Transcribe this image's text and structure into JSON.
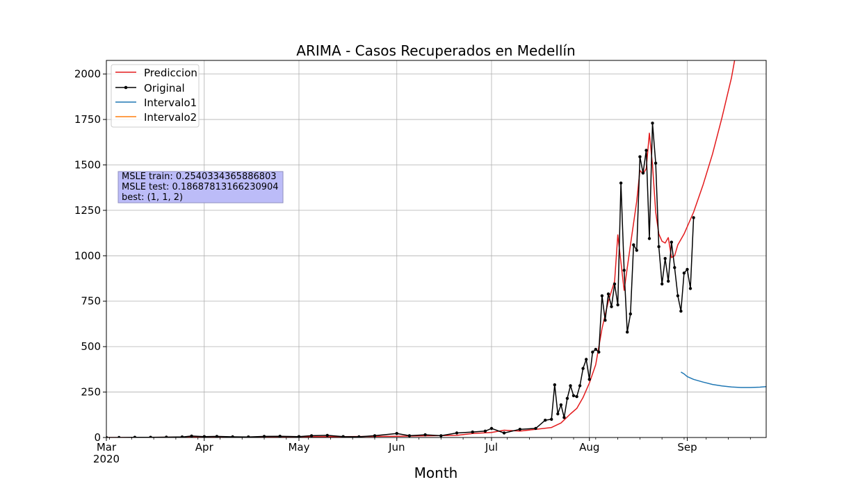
{
  "chart_data": {
    "type": "line",
    "title": "ARIMA - Casos Recuperados en Medellín",
    "xlabel": "Month",
    "ylabel": "",
    "x_axis": {
      "type": "date",
      "range": [
        "2020-03-01",
        "2020-09-26"
      ],
      "major_ticks": [
        {
          "date": "2020-03-01",
          "label": "Mar",
          "sublabel": "2020"
        },
        {
          "date": "2020-04-01",
          "label": "Apr",
          "sublabel": ""
        },
        {
          "date": "2020-05-01",
          "label": "May",
          "sublabel": ""
        },
        {
          "date": "2020-06-01",
          "label": "Jun",
          "sublabel": ""
        },
        {
          "date": "2020-07-01",
          "label": "Jul",
          "sublabel": ""
        },
        {
          "date": "2020-08-01",
          "label": "Aug",
          "sublabel": ""
        },
        {
          "date": "2020-09-01",
          "label": "Sep",
          "sublabel": ""
        }
      ]
    },
    "y_axis": {
      "range": [
        0,
        2075
      ],
      "ticks": [
        0,
        250,
        500,
        750,
        1000,
        1250,
        1500,
        1750,
        2000
      ],
      "tick_labels": [
        "0",
        "250",
        "500",
        "750",
        "1000",
        "1250",
        "1500",
        "1750",
        "2000"
      ]
    },
    "grid": true,
    "legend_position": "top-left",
    "stats_box": {
      "lines": [
        "MSLE train: 0.2540334365886803",
        "MSLE test: 0.18687813166230904",
        "best: (1, 1, 2)"
      ],
      "background": "#bcbcf8",
      "border": "#8f8fbf"
    },
    "series": [
      {
        "name": "Prediccion",
        "color": "#e31a1c",
        "marker": false,
        "points": [
          [
            "2020-03-01",
            0
          ],
          [
            "2020-03-15",
            1
          ],
          [
            "2020-04-01",
            3
          ],
          [
            "2020-04-15",
            3
          ],
          [
            "2020-05-01",
            4
          ],
          [
            "2020-05-15",
            5
          ],
          [
            "2020-06-01",
            7
          ],
          [
            "2020-06-10",
            9
          ],
          [
            "2020-06-20",
            12
          ],
          [
            "2020-06-25",
            22
          ],
          [
            "2020-07-01",
            28
          ],
          [
            "2020-07-05",
            40
          ],
          [
            "2020-07-10",
            35
          ],
          [
            "2020-07-15",
            45
          ],
          [
            "2020-07-20",
            55
          ],
          [
            "2020-07-23",
            80
          ],
          [
            "2020-07-26",
            130
          ],
          [
            "2020-07-28",
            160
          ],
          [
            "2020-07-30",
            220
          ],
          [
            "2020-08-01",
            300
          ],
          [
            "2020-08-03",
            400
          ],
          [
            "2020-08-05",
            600
          ],
          [
            "2020-08-07",
            750
          ],
          [
            "2020-08-09",
            860
          ],
          [
            "2020-08-10",
            1115
          ],
          [
            "2020-08-12",
            810
          ],
          [
            "2020-08-14",
            1060
          ],
          [
            "2020-08-16",
            1300
          ],
          [
            "2020-08-17",
            1470
          ],
          [
            "2020-08-18",
            1450
          ],
          [
            "2020-08-19",
            1480
          ],
          [
            "2020-08-20",
            1675
          ],
          [
            "2020-08-21",
            1500
          ],
          [
            "2020-08-22",
            1240
          ],
          [
            "2020-08-23",
            1120
          ],
          [
            "2020-08-24",
            1080
          ],
          [
            "2020-08-25",
            1070
          ],
          [
            "2020-08-26",
            1100
          ],
          [
            "2020-08-27",
            990
          ],
          [
            "2020-08-28",
            1000
          ],
          [
            "2020-08-29",
            1060
          ],
          [
            "2020-08-30",
            1090
          ],
          [
            "2020-08-31",
            1120
          ],
          [
            "2020-09-03",
            1240
          ],
          [
            "2020-09-06",
            1390
          ],
          [
            "2020-09-09",
            1560
          ],
          [
            "2020-09-12",
            1760
          ],
          [
            "2020-09-15",
            1980
          ],
          [
            "2020-09-16",
            2075
          ]
        ]
      },
      {
        "name": "Original",
        "color": "#000000",
        "marker": true,
        "points": [
          [
            "2020-03-01",
            0
          ],
          [
            "2020-03-05",
            0
          ],
          [
            "2020-03-10",
            1
          ],
          [
            "2020-03-15",
            1
          ],
          [
            "2020-03-20",
            2
          ],
          [
            "2020-03-25",
            3
          ],
          [
            "2020-03-28",
            8
          ],
          [
            "2020-04-01",
            5
          ],
          [
            "2020-04-05",
            6
          ],
          [
            "2020-04-10",
            4
          ],
          [
            "2020-04-15",
            3
          ],
          [
            "2020-04-20",
            6
          ],
          [
            "2020-04-25",
            7
          ],
          [
            "2020-05-01",
            5
          ],
          [
            "2020-05-05",
            10
          ],
          [
            "2020-05-10",
            12
          ],
          [
            "2020-05-15",
            5
          ],
          [
            "2020-05-20",
            4
          ],
          [
            "2020-05-25",
            10
          ],
          [
            "2020-06-01",
            22
          ],
          [
            "2020-06-05",
            10
          ],
          [
            "2020-06-10",
            15
          ],
          [
            "2020-06-15",
            10
          ],
          [
            "2020-06-20",
            25
          ],
          [
            "2020-06-25",
            30
          ],
          [
            "2020-06-29",
            35
          ],
          [
            "2020-07-01",
            50
          ],
          [
            "2020-07-05",
            25
          ],
          [
            "2020-07-10",
            45
          ],
          [
            "2020-07-15",
            50
          ],
          [
            "2020-07-18",
            95
          ],
          [
            "2020-07-20",
            100
          ],
          [
            "2020-07-21",
            290
          ],
          [
            "2020-07-22",
            130
          ],
          [
            "2020-07-23",
            180
          ],
          [
            "2020-07-24",
            110
          ],
          [
            "2020-07-25",
            215
          ],
          [
            "2020-07-26",
            285
          ],
          [
            "2020-07-27",
            230
          ],
          [
            "2020-07-28",
            225
          ],
          [
            "2020-07-29",
            285
          ],
          [
            "2020-07-30",
            380
          ],
          [
            "2020-07-31",
            430
          ],
          [
            "2020-08-01",
            320
          ],
          [
            "2020-08-02",
            470
          ],
          [
            "2020-08-03",
            485
          ],
          [
            "2020-08-04",
            470
          ],
          [
            "2020-08-05",
            780
          ],
          [
            "2020-08-06",
            645
          ],
          [
            "2020-08-07",
            790
          ],
          [
            "2020-08-08",
            720
          ],
          [
            "2020-08-09",
            845
          ],
          [
            "2020-08-10",
            730
          ],
          [
            "2020-08-11",
            1400
          ],
          [
            "2020-08-12",
            920
          ],
          [
            "2020-08-13",
            580
          ],
          [
            "2020-08-14",
            680
          ],
          [
            "2020-08-15",
            1060
          ],
          [
            "2020-08-16",
            1030
          ],
          [
            "2020-08-17",
            1545
          ],
          [
            "2020-08-18",
            1455
          ],
          [
            "2020-08-19",
            1580
          ],
          [
            "2020-08-20",
            1095
          ],
          [
            "2020-08-21",
            1730
          ],
          [
            "2020-08-22",
            1510
          ],
          [
            "2020-08-23",
            1050
          ],
          [
            "2020-08-24",
            845
          ],
          [
            "2020-08-25",
            985
          ],
          [
            "2020-08-26",
            860
          ],
          [
            "2020-08-27",
            1075
          ],
          [
            "2020-08-28",
            935
          ],
          [
            "2020-08-29",
            780
          ],
          [
            "2020-08-30",
            695
          ],
          [
            "2020-08-31",
            905
          ],
          [
            "2020-09-01",
            925
          ],
          [
            "2020-09-02",
            820
          ],
          [
            "2020-09-03",
            1210
          ]
        ]
      },
      {
        "name": "Intervalo1",
        "color": "#1f77b4",
        "marker": false,
        "points": [
          [
            "2020-08-30",
            360
          ],
          [
            "2020-08-31",
            350
          ],
          [
            "2020-09-01",
            335
          ],
          [
            "2020-09-03",
            320
          ],
          [
            "2020-09-06",
            305
          ],
          [
            "2020-09-09",
            292
          ],
          [
            "2020-09-12",
            284
          ],
          [
            "2020-09-15",
            278
          ],
          [
            "2020-09-18",
            275
          ],
          [
            "2020-09-21",
            275
          ],
          [
            "2020-09-24",
            277
          ],
          [
            "2020-09-26",
            280
          ]
        ]
      },
      {
        "name": "Intervalo2",
        "color": "#ff7f0e",
        "marker": false,
        "points": []
      }
    ]
  }
}
